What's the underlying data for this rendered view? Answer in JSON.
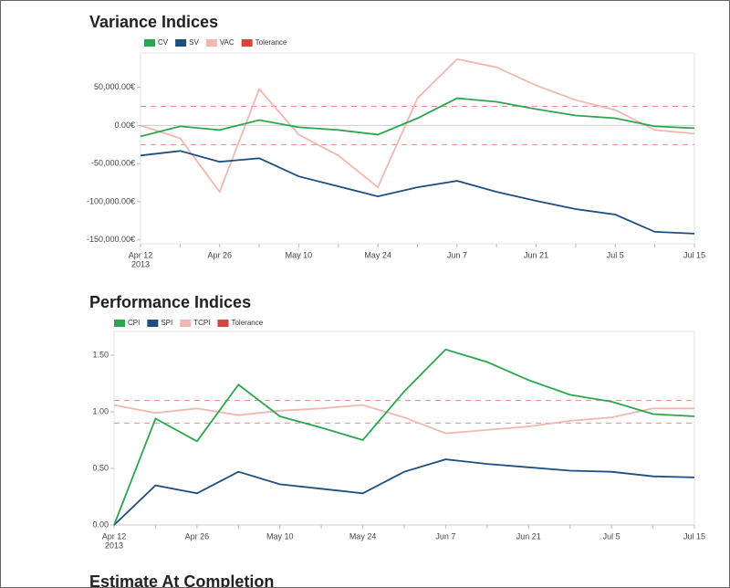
{
  "chart_data": [
    {
      "type": "line",
      "title": "Variance Indices",
      "categories": [
        "Apr 12",
        null,
        "Apr 26",
        null,
        "May 10",
        null,
        "May 24",
        null,
        "Jun 7",
        null,
        "Jun 21",
        null,
        "Jul 5",
        null,
        "Jul 15"
      ],
      "x_sublabel": "2013",
      "series": [
        {
          "name": "CV",
          "color": "#2ca64e",
          "values": [
            -14300,
            -1200,
            -6000,
            7100,
            -2400,
            -6000,
            -11900,
            9500,
            35700,
            31000,
            21400,
            13100,
            9500,
            -1200,
            -3600
          ]
        },
        {
          "name": "SV",
          "color": "#1f4e80",
          "values": [
            -39300,
            -33300,
            -47600,
            -42900,
            -66700,
            -79800,
            -92900,
            -81000,
            -72600,
            -86900,
            -98800,
            -109500,
            -116700,
            -139300,
            -141700
          ]
        },
        {
          "name": "VAC",
          "color": "#f0b8b0",
          "values": [
            0,
            -16700,
            -86900,
            47600,
            -11900,
            -39300,
            -81000,
            35700,
            86900,
            76200,
            52400,
            33300,
            20200,
            -6000,
            -10700
          ]
        }
      ],
      "tolerance": {
        "name": "Tolerance",
        "color": "#d9453c",
        "values": [
          25000,
          -25000
        ]
      },
      "ylim": [
        -155000,
        95000
      ],
      "yticks": [
        {
          "value": -150000,
          "label": "-150,000.00€"
        },
        {
          "value": -100000,
          "label": "-100,000.00€"
        },
        {
          "value": -50000,
          "label": "-50,000.00€"
        },
        {
          "value": 0,
          "label": "0.00€"
        },
        {
          "value": 50000,
          "label": "50,000.00€"
        }
      ]
    },
    {
      "type": "line",
      "title": "Performance Indices",
      "categories": [
        "Apr 12",
        null,
        "Apr 26",
        null,
        "May 10",
        null,
        "May 24",
        null,
        "Jun 7",
        null,
        "Jun 21",
        null,
        "Jul 5",
        null,
        "Jul 15"
      ],
      "x_sublabel": "2013",
      "series": [
        {
          "name": "CPI",
          "color": "#2ca64e",
          "values": [
            0,
            0.94,
            0.74,
            1.24,
            0.96,
            0.86,
            0.75,
            1.18,
            1.55,
            1.44,
            1.28,
            1.15,
            1.09,
            0.98,
            0.96
          ]
        },
        {
          "name": "SPI",
          "color": "#1f4e80",
          "values": [
            0,
            0.35,
            0.28,
            0.47,
            0.36,
            0.32,
            0.28,
            0.47,
            0.58,
            0.54,
            0.51,
            0.48,
            0.47,
            0.43,
            0.42
          ]
        },
        {
          "name": "TCPI",
          "color": "#f0b8b0",
          "values": [
            1.06,
            0.99,
            1.03,
            0.97,
            1.01,
            1.03,
            1.06,
            0.95,
            0.81,
            0.84,
            0.87,
            0.92,
            0.95,
            1.03,
            1.03
          ]
        }
      ],
      "tolerance": {
        "name": "Tolerance",
        "color": "#d9453c",
        "values": [
          1.1,
          0.9
        ]
      },
      "ylim": [
        0,
        1.71
      ],
      "yticks": [
        {
          "value": 0,
          "label": "0.00"
        },
        {
          "value": 0.5,
          "label": "0.50"
        },
        {
          "value": 1,
          "label": "1.00"
        },
        {
          "value": 1.5,
          "label": "1.50"
        }
      ]
    }
  ],
  "next_section_title": "Estimate At Completion"
}
